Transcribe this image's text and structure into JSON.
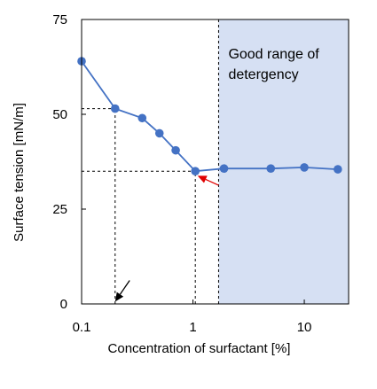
{
  "chart_data": {
    "type": "line",
    "xscale": "log",
    "xlim": [
      0.1,
      25
    ],
    "ylim": [
      0,
      75
    ],
    "xlabel": "Concentration of surfactant [%]",
    "ylabel": "Surface tension [mN/m]",
    "xticks": [
      0.1,
      1,
      10
    ],
    "xtick_labels": [
      "0.1",
      "1",
      "10"
    ],
    "yticks": [
      0,
      25,
      50,
      75
    ],
    "ytick_labels": [
      "0",
      "25",
      "50",
      "75"
    ],
    "grid": false,
    "series": [
      {
        "color": "#4472c4",
        "x": [
          0.1,
          0.2,
          0.35,
          0.5,
          0.7,
          1.05,
          1.9,
          5.0,
          10.0,
          20.0
        ],
        "y": [
          64.0,
          51.5,
          49.0,
          45.0,
          40.5,
          35.0,
          35.7,
          35.7,
          36.0,
          35.5
        ]
      }
    ],
    "shaded_region": {
      "x_from": 1.7,
      "x_to": 25,
      "color": "#d6e0f3"
    },
    "annotations": [
      {
        "text": "Good  range  of",
        "color": "#000000"
      },
      {
        "text": "detergency",
        "color": "#000000"
      }
    ],
    "reference_lines": [
      {
        "style": "dashed",
        "x": [
          0.1,
          0.2
        ],
        "y": [
          51.5,
          51.5
        ]
      },
      {
        "style": "dashed",
        "x": [
          0.2,
          0.2
        ],
        "y": [
          0,
          51.5
        ]
      },
      {
        "style": "dashed",
        "x": [
          0.1,
          1.05
        ],
        "y": [
          35.0,
          35.0
        ]
      },
      {
        "style": "dashed",
        "x": [
          1.05,
          1.05
        ],
        "y": [
          0,
          35.0
        ]
      },
      {
        "style": "dashed",
        "x": [
          1.7,
          1.7
        ],
        "y": [
          0,
          75
        ]
      }
    ],
    "arrows": [
      {
        "color": "#e00000",
        "from": [
          1.7,
          31.3
        ],
        "to": [
          1.1,
          33.8
        ]
      },
      {
        "color": "#000000",
        "from": [
          0.27,
          6.2
        ],
        "to": [
          0.2,
          0.6
        ]
      }
    ]
  }
}
